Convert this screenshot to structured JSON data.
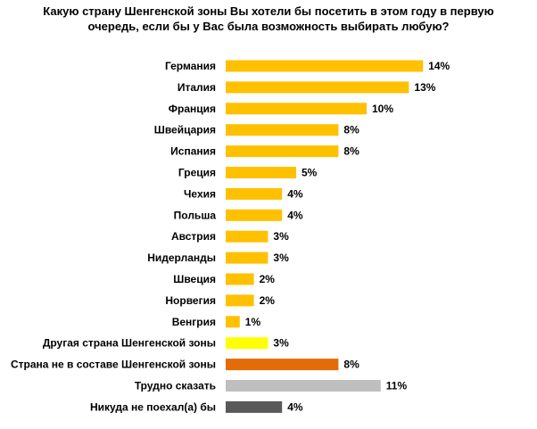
{
  "chart_data": {
    "type": "bar",
    "orientation": "horizontal",
    "title_lines": [
      "Какую страну Шенгенской зоны Вы хотели бы посетить в этом году в первую",
      "очередь, если бы у Вас была возможность выбирать любую?"
    ],
    "categories": [
      "Германия",
      "Италия",
      "Франция",
      "Швейцария",
      "Испания",
      "Греция",
      "Чехия",
      "Польша",
      "Австрия",
      "Нидерланды",
      "Швеция",
      "Норвегия",
      "Венгрия",
      "Другая страна Шенгенской зоны",
      "Страна не в составе Шенгенской зоны",
      "Трудно сказать",
      "Никуда не поехал(а) бы"
    ],
    "values": [
      14,
      13,
      10,
      8,
      8,
      5,
      4,
      4,
      3,
      3,
      2,
      2,
      1,
      3,
      8,
      11,
      4
    ],
    "value_labels": [
      "14%",
      "13%",
      "10%",
      "8%",
      "8%",
      "5%",
      "4%",
      "4%",
      "3%",
      "3%",
      "2%",
      "2%",
      "1%",
      "3%",
      "8%",
      "11%",
      "4%"
    ],
    "colors": [
      "#ffc000",
      "#ffc000",
      "#ffc000",
      "#ffc000",
      "#ffc000",
      "#ffc000",
      "#ffc000",
      "#ffc000",
      "#ffc000",
      "#ffc000",
      "#ffc000",
      "#ffc000",
      "#ffc000",
      "#ffff00",
      "#e36c09",
      "#bfbfbf",
      "#595959"
    ],
    "grid": false,
    "legend": "none"
  }
}
